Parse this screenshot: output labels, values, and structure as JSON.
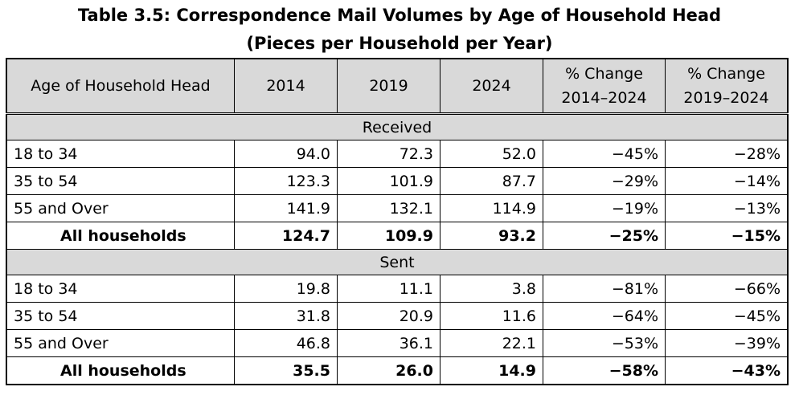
{
  "title": {
    "line1": "Table 3.5: Correspondence Mail Volumes by Age of Household Head",
    "line2": "(Pieces per Household per Year)"
  },
  "columns": {
    "age": "Age of Household Head",
    "y2014": "2014",
    "y2019": "2019",
    "y2024": "2024",
    "pc1_line1": "% Change",
    "pc1_line2": "2014–2024",
    "pc2_line1": "% Change",
    "pc2_line2": "2019–2024"
  },
  "sections": [
    {
      "name": "Received",
      "rows": [
        {
          "age": "18 to 34",
          "y2014": "94.0",
          "y2019": "72.3",
          "y2024": "52.0",
          "pc1": "−45%",
          "pc2": "−28%"
        },
        {
          "age": "35 to 54",
          "y2014": "123.3",
          "y2019": "101.9",
          "y2024": "87.7",
          "pc1": "−29%",
          "pc2": "−14%"
        },
        {
          "age": "55 and Over",
          "y2014": "141.9",
          "y2019": "132.1",
          "y2024": "114.9",
          "pc1": "−19%",
          "pc2": "−13%"
        },
        {
          "age": "All households",
          "y2014": "124.7",
          "y2019": "109.9",
          "y2024": "93.2",
          "pc1": "−25%",
          "pc2": "−15%"
        }
      ]
    },
    {
      "name": "Sent",
      "rows": [
        {
          "age": "18 to 34",
          "y2014": "19.8",
          "y2019": "11.1",
          "y2024": "3.8",
          "pc1": "−81%",
          "pc2": "−66%"
        },
        {
          "age": "35 to 54",
          "y2014": "31.8",
          "y2019": "20.9",
          "y2024": "11.6",
          "pc1": "−64%",
          "pc2": "−45%"
        },
        {
          "age": "55 and Over",
          "y2014": "46.8",
          "y2019": "36.1",
          "y2024": "22.1",
          "pc1": "−53%",
          "pc2": "−39%"
        },
        {
          "age": "All households",
          "y2014": "35.5",
          "y2019": "26.0",
          "y2024": "14.9",
          "pc1": "−58%",
          "pc2": "−43%"
        }
      ]
    }
  ]
}
